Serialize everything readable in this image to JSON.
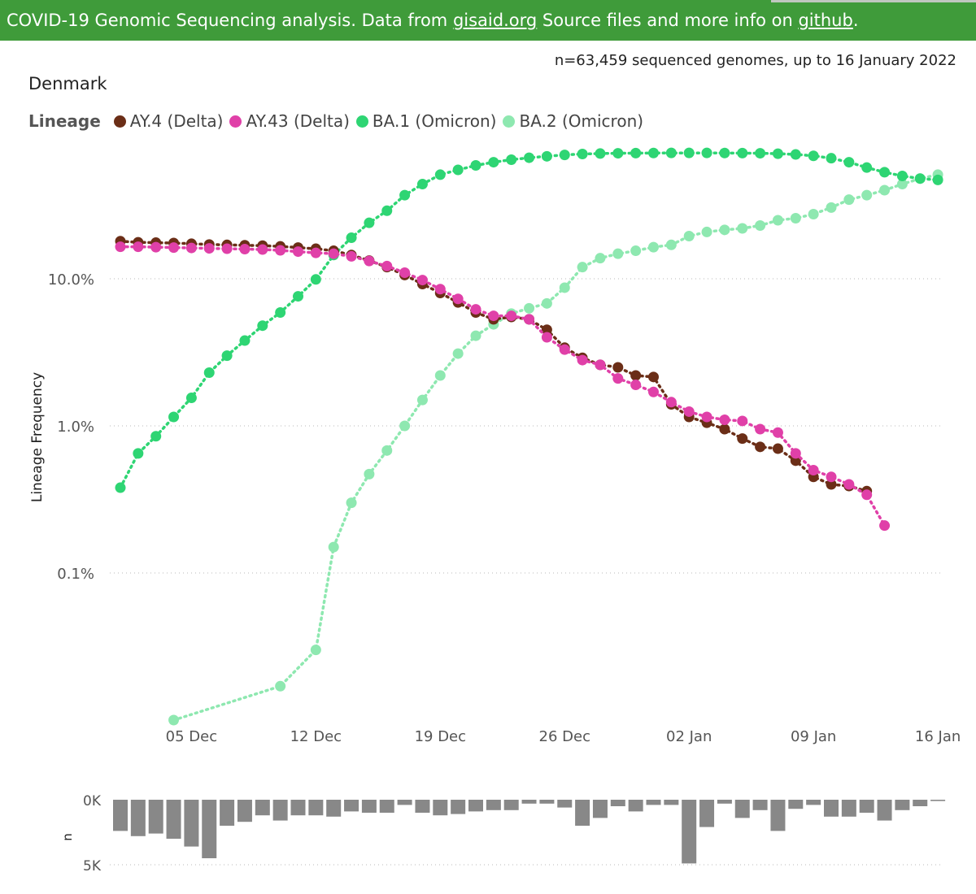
{
  "header": {
    "text_before": "COVID-19 Genomic Sequencing analysis. Data from ",
    "link1": "gisaid.org",
    "text_middle": " Source files and more info on ",
    "link2": "github",
    "text_after": "."
  },
  "summary": "n=63,459 sequenced genomes, up to 16 January 2022",
  "country": "Denmark",
  "colors": {
    "header_bg": "#3f9b3a",
    "AY4": "#6b2e17",
    "AY43": "#e040a8",
    "BA1": "#2ed573",
    "BA2": "#8ee8b0",
    "bars": "#888888"
  },
  "chart_data": [
    {
      "type": "line",
      "ylabel": "Lineage Frequency",
      "yscale": "log",
      "legend_title": "Lineage",
      "legend_position": "top-left",
      "y_ticks": [
        "10.0%",
        "1.0%",
        "0.1%"
      ],
      "x_ticks": [
        "05 Dec",
        "12 Dec",
        "19 Dec",
        "26 Dec",
        "02 Jan",
        "09 Jan",
        "16 Jan"
      ],
      "grid": "horizontal dotted",
      "x_dates": [
        "2021-12-01",
        "2021-12-02",
        "2021-12-03",
        "2021-12-04",
        "2021-12-05",
        "2021-12-06",
        "2021-12-07",
        "2021-12-08",
        "2021-12-09",
        "2021-12-10",
        "2021-12-11",
        "2021-12-12",
        "2021-12-13",
        "2021-12-14",
        "2021-12-15",
        "2021-12-16",
        "2021-12-17",
        "2021-12-18",
        "2021-12-19",
        "2021-12-20",
        "2021-12-21",
        "2021-12-22",
        "2021-12-23",
        "2021-12-24",
        "2021-12-25",
        "2021-12-26",
        "2021-12-27",
        "2021-12-28",
        "2021-12-29",
        "2021-12-30",
        "2021-12-31",
        "2022-01-01",
        "2022-01-02",
        "2022-01-03",
        "2022-01-04",
        "2022-01-05",
        "2022-01-06",
        "2022-01-07",
        "2022-01-08",
        "2022-01-09",
        "2022-01-10",
        "2022-01-11",
        "2022-01-12",
        "2022-01-13",
        "2022-01-14",
        "2022-01-15",
        "2022-01-16"
      ],
      "series": [
        {
          "name": "AY.4 (Delta)",
          "color_key": "AY4",
          "values": [
            18.0,
            17.7,
            17.6,
            17.5,
            17.3,
            17.1,
            17.0,
            16.9,
            16.8,
            16.6,
            16.3,
            16.0,
            15.5,
            14.5,
            13.3,
            12.0,
            10.6,
            9.2,
            8.0,
            6.9,
            5.9,
            5.3,
            5.5,
            5.3,
            4.5,
            3.4,
            2.9,
            2.6,
            2.5,
            2.2,
            2.15,
            1.4,
            1.15,
            1.05,
            0.95,
            0.82,
            0.72,
            0.7,
            0.58,
            0.45,
            0.4,
            0.39,
            0.36,
            null,
            null,
            null,
            null
          ]
        },
        {
          "name": "AY.43 (Delta)",
          "color_key": "AY43",
          "values": [
            16.5,
            16.5,
            16.4,
            16.3,
            16.2,
            16.1,
            16.0,
            15.9,
            15.8,
            15.6,
            15.3,
            15.0,
            14.8,
            14.2,
            13.2,
            12.2,
            11.0,
            9.8,
            8.5,
            7.3,
            6.2,
            5.6,
            5.6,
            5.3,
            4.0,
            3.3,
            2.8,
            2.6,
            2.1,
            1.9,
            1.7,
            1.45,
            1.25,
            1.15,
            1.1,
            1.08,
            0.95,
            0.9,
            0.65,
            0.5,
            0.45,
            0.4,
            0.34,
            0.21,
            null,
            null,
            null
          ]
        },
        {
          "name": "BA.1 (Omicron)",
          "color_key": "BA1",
          "values": [
            0.38,
            0.65,
            0.85,
            1.15,
            1.55,
            2.3,
            3.0,
            3.8,
            4.8,
            5.9,
            7.6,
            9.9,
            14.5,
            19.0,
            24.0,
            29.0,
            37.0,
            44.0,
            51.0,
            55.0,
            59.0,
            62.0,
            64.5,
            66.5,
            68.0,
            69.5,
            70.5,
            71.0,
            71.3,
            71.5,
            71.6,
            71.7,
            71.7,
            71.7,
            71.6,
            71.5,
            71.3,
            70.8,
            70.0,
            68.5,
            66.0,
            62.0,
            57.0,
            53.0,
            50.0,
            48.0,
            47.0
          ]
        },
        {
          "name": "BA.2 (Omicron)",
          "color_key": "BA2",
          "values": [
            null,
            null,
            null,
            0.01,
            null,
            null,
            null,
            null,
            null,
            0.017,
            null,
            0.03,
            0.15,
            0.3,
            0.47,
            0.68,
            1.0,
            1.5,
            2.2,
            3.1,
            4.1,
            4.9,
            5.8,
            6.3,
            6.8,
            8.7,
            12.0,
            13.8,
            14.8,
            15.5,
            16.4,
            17.0,
            19.5,
            20.8,
            21.5,
            22.0,
            23.0,
            25.0,
            25.8,
            27.5,
            30.5,
            34.5,
            37.0,
            40.0,
            44.0,
            48.0,
            51.0
          ]
        }
      ]
    },
    {
      "type": "bar",
      "ylabel": "n",
      "y_ticks": [
        "0K",
        "5K"
      ],
      "ylim": [
        0,
        5000
      ],
      "values": [
        2400,
        2800,
        2600,
        3000,
        3600,
        4500,
        2000,
        1700,
        1200,
        1600,
        1200,
        1200,
        1300,
        900,
        1000,
        1000,
        400,
        1000,
        1200,
        1100,
        900,
        800,
        800,
        300,
        300,
        600,
        2000,
        1400,
        500,
        900,
        400,
        400,
        4900,
        2100,
        300,
        1400,
        800,
        2400,
        700,
        400,
        1300,
        1300,
        1000,
        1600,
        800,
        500,
        100
      ]
    }
  ]
}
